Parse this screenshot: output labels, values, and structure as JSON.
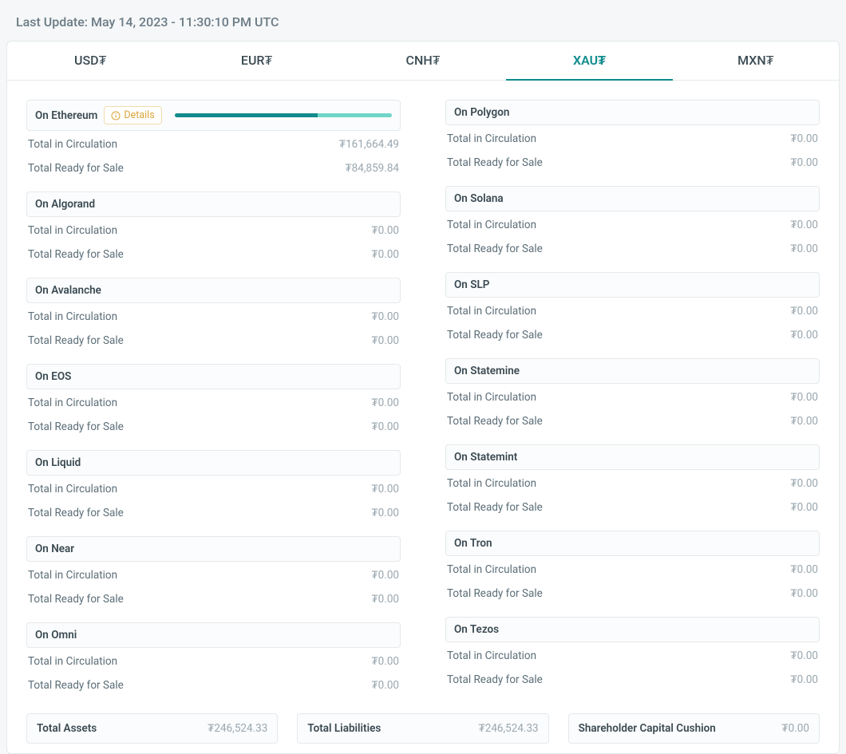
{
  "last_update": "Last Update: May 14, 2023 - 11:30:10 PM UTC",
  "currency_symbol": "₮",
  "tabs": [
    {
      "label": "USD₮",
      "active": false
    },
    {
      "label": "EUR₮",
      "active": false
    },
    {
      "label": "CNH₮",
      "active": false
    },
    {
      "label": "XAU₮",
      "active": true
    },
    {
      "label": "MXN₮",
      "active": false
    }
  ],
  "labels": {
    "circulation": "Total in Circulation",
    "ready_for_sale": "Total Ready for Sale",
    "details": "Details"
  },
  "columns": [
    [
      {
        "title": "On Ethereum",
        "details": true,
        "progress": [
          0.66,
          0.34
        ],
        "circulation": "161,664.49",
        "ready": "84,859.84"
      },
      {
        "title": "On Algorand",
        "circulation": "0.00",
        "ready": "0.00"
      },
      {
        "title": "On Avalanche",
        "circulation": "0.00",
        "ready": "0.00"
      },
      {
        "title": "On EOS",
        "circulation": "0.00",
        "ready": "0.00"
      },
      {
        "title": "On Liquid",
        "circulation": "0.00",
        "ready": "0.00"
      },
      {
        "title": "On Near",
        "circulation": "0.00",
        "ready": "0.00"
      },
      {
        "title": "On Omni",
        "circulation": "0.00",
        "ready": "0.00"
      }
    ],
    [
      {
        "title": "On Polygon",
        "circulation": "0.00",
        "ready": "0.00"
      },
      {
        "title": "On Solana",
        "circulation": "0.00",
        "ready": "0.00"
      },
      {
        "title": "On SLP",
        "circulation": "0.00",
        "ready": "0.00"
      },
      {
        "title": "On Statemine",
        "circulation": "0.00",
        "ready": "0.00"
      },
      {
        "title": "On Statemint",
        "circulation": "0.00",
        "ready": "0.00"
      },
      {
        "title": "On Tron",
        "circulation": "0.00",
        "ready": "0.00"
      },
      {
        "title": "On Tezos",
        "circulation": "0.00",
        "ready": "0.00"
      }
    ]
  ],
  "totals": [
    {
      "label": "Total Assets",
      "value": "246,524.33"
    },
    {
      "label": "Total Liabilities",
      "value": "246,524.33"
    },
    {
      "label": "Shareholder Capital Cushion",
      "value": "0.00"
    }
  ],
  "colors": {
    "background": "#f5f7f8",
    "card_border": "#e5e9eb",
    "accent": "#0f8b8d",
    "accent_light": "#6fd6c8",
    "text": "#3a4a52",
    "text_muted": "#5c6e78",
    "text_faint": "#9aa7af",
    "details_text": "#d9a53a",
    "details_border": "#f0dcae"
  }
}
